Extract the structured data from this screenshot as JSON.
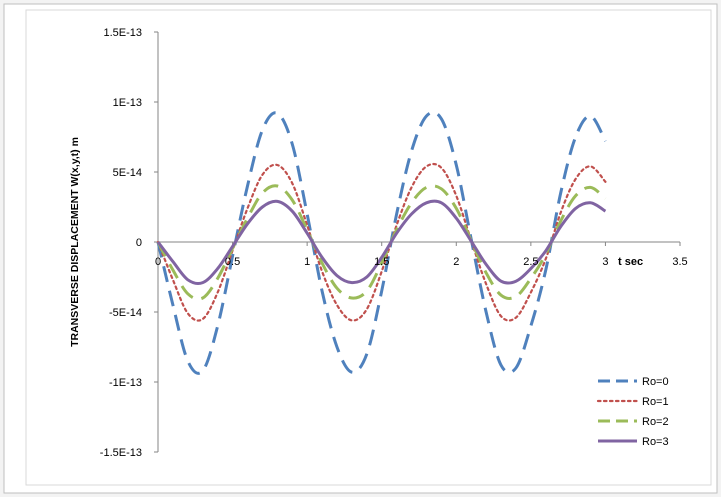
{
  "chart_data": {
    "type": "line",
    "title": "",
    "xlabel": "t  sec",
    "ylabel": "TRANSVERSE DISPLACEMENT  W(x,y,t)  m",
    "xlim": [
      0,
      3.5
    ],
    "ylim": [
      -1.5e-13,
      1.5e-13
    ],
    "x_ticks": [
      "0",
      "0.5",
      "1",
      "1.5",
      "2",
      "2.5",
      "3",
      "3.5"
    ],
    "y_ticks": [
      "1.5E-13",
      "1E-13",
      "5E-14",
      "0",
      "-5E-14",
      "-1E-13",
      "-1.5E-13"
    ],
    "grid": false,
    "legend_position": "bottom-right",
    "x": [
      0,
      0.1,
      0.2,
      0.3,
      0.4,
      0.5,
      0.6,
      0.7,
      0.8,
      0.9,
      1.0,
      1.1,
      1.2,
      1.3,
      1.4,
      1.5,
      1.6,
      1.7,
      1.8,
      1.9,
      2.0,
      2.1,
      2.2,
      2.3,
      2.4,
      2.5,
      2.6,
      2.7,
      2.8,
      2.9,
      3.0
    ],
    "series": [
      {
        "name": "Ro=0",
        "color": "#4f81bd",
        "dash": "dashed",
        "values": [
          0,
          -4.5e-14,
          -8.5e-14,
          -9.2e-14,
          -6e-14,
          -1e-14,
          4e-14,
          8e-14,
          9.2e-14,
          7e-14,
          2e-14,
          -3.5e-14,
          -7.5e-14,
          -9.3e-14,
          -8e-14,
          -3.5e-14,
          2e-14,
          6.5e-14,
          9e-14,
          8.8e-14,
          5.5e-14,
          2e-15,
          -5e-14,
          -8.8e-14,
          -9e-14,
          -6e-14,
          -2e-14,
          3.5e-14,
          7.5e-14,
          9e-14,
          7.2e-14
        ]
      },
      {
        "name": "Ro=1",
        "color": "#c0504d",
        "dash": "dotted",
        "values": [
          0,
          -2.7e-14,
          -5.1e-14,
          -5.5e-14,
          -3.6e-14,
          -6e-15,
          2.4e-14,
          4.8e-14,
          5.5e-14,
          4.2e-14,
          1.2e-14,
          -2.1e-14,
          -4.5e-14,
          -5.6e-14,
          -4.8e-14,
          -2.1e-14,
          1.2e-14,
          3.9e-14,
          5.4e-14,
          5.3e-14,
          3.3e-14,
          1e-15,
          -3e-14,
          -5.3e-14,
          -5.4e-14,
          -3.6e-14,
          -1.2e-14,
          2.1e-14,
          4.5e-14,
          5.4e-14,
          4.3e-14
        ]
      },
      {
        "name": "Ro=2",
        "color": "#9bbb59",
        "dash": "dashed",
        "values": [
          0,
          -2e-14,
          -3.7e-14,
          -4e-14,
          -2.6e-14,
          -4.4e-15,
          1.7e-14,
          3.5e-14,
          4e-14,
          3e-14,
          8.7e-15,
          -1.5e-14,
          -3.3e-14,
          -4e-14,
          -3.5e-14,
          -1.5e-14,
          8.7e-15,
          2.8e-14,
          3.9e-14,
          3.8e-14,
          2.4e-14,
          9e-16,
          -2.2e-14,
          -3.8e-14,
          -3.9e-14,
          -2.6e-14,
          -8.7e-15,
          1.5e-14,
          3.3e-14,
          3.9e-14,
          3.1e-14
        ]
      },
      {
        "name": "Ro=3",
        "color": "#8064a2",
        "dash": "solid",
        "values": [
          0,
          -1.4e-14,
          -2.7e-14,
          -2.9e-14,
          -1.9e-14,
          -3.2e-15,
          1.3e-14,
          2.5e-14,
          2.9e-14,
          2.2e-14,
          6.3e-15,
          -1.1e-14,
          -2.4e-14,
          -2.9e-14,
          -2.5e-14,
          -1.1e-14,
          6.3e-15,
          2e-14,
          2.8e-14,
          2.8e-14,
          1.7e-14,
          6e-16,
          -1.6e-14,
          -2.8e-14,
          -2.8e-14,
          -1.9e-14,
          -6.3e-15,
          1.1e-14,
          2.4e-14,
          2.8e-14,
          2.2e-14
        ]
      }
    ]
  }
}
